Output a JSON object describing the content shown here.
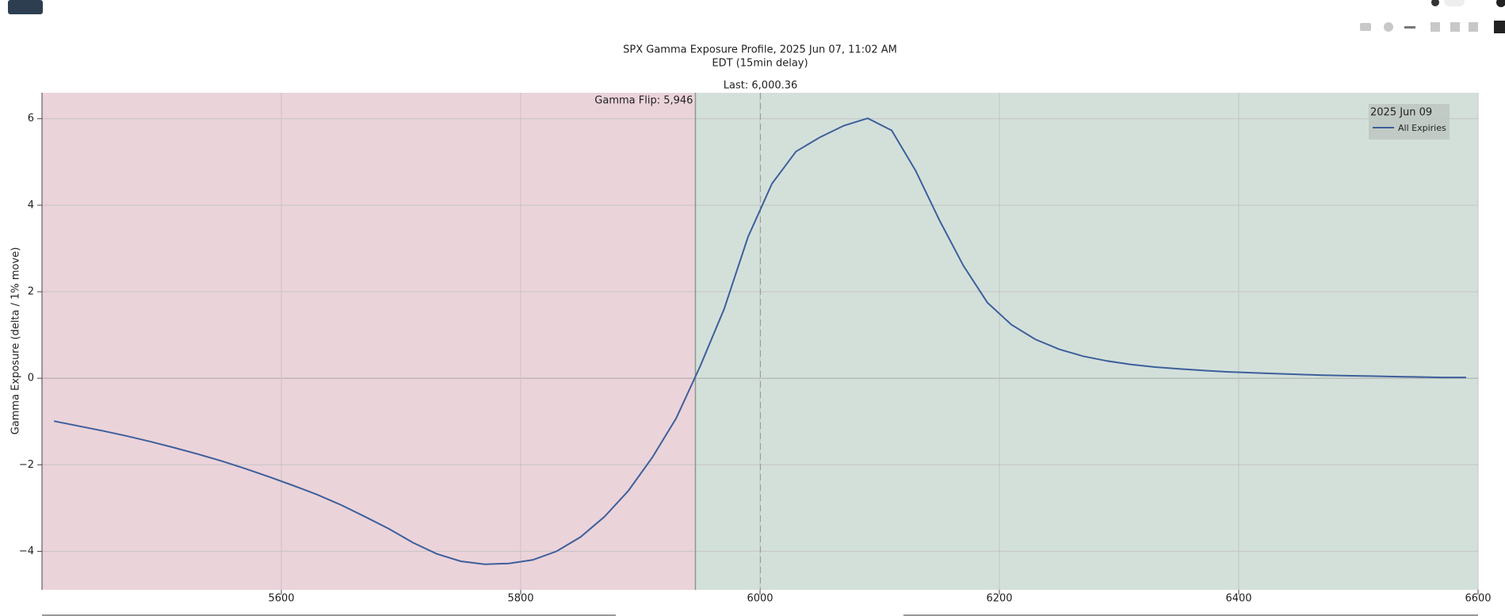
{
  "chart_data": {
    "type": "line",
    "title": [
      "SPX Gamma Exposure Profile, 2025 Jun 07, 11:02 AM",
      "EDT (15min delay)"
    ],
    "y_label": "Gamma Exposure (delta / 1% move)",
    "legend_title": "2025 Jun 09",
    "legend_position": "top-right",
    "x": [
      5410,
      5430,
      5450,
      5470,
      5490,
      5510,
      5530,
      5550,
      5570,
      5590,
      5610,
      5630,
      5650,
      5670,
      5690,
      5710,
      5730,
      5750,
      5770,
      5790,
      5810,
      5830,
      5850,
      5870,
      5890,
      5910,
      5930,
      5950,
      5970,
      5990,
      6010,
      6030,
      6050,
      6070,
      6090,
      6110,
      6130,
      6150,
      6170,
      6190,
      6210,
      6230,
      6250,
      6270,
      6290,
      6310,
      6330,
      6350,
      6370,
      6390,
      6410,
      6430,
      6450,
      6470,
      6490,
      6510,
      6530,
      6550,
      6570,
      6590
    ],
    "series": [
      {
        "name": "All Expiries",
        "color": "#3d5f9b",
        "values": [
          -0.99,
          -1.1,
          -1.21,
          -1.33,
          -1.46,
          -1.6,
          -1.75,
          -1.91,
          -2.09,
          -2.28,
          -2.48,
          -2.69,
          -2.93,
          -3.2,
          -3.48,
          -3.8,
          -4.06,
          -4.23,
          -4.3,
          -4.28,
          -4.2,
          -4.0,
          -3.67,
          -3.2,
          -2.6,
          -1.83,
          -0.92,
          0.28,
          1.6,
          3.27,
          4.5,
          5.24,
          5.57,
          5.84,
          6.01,
          5.73,
          4.8,
          3.65,
          2.6,
          1.75,
          1.24,
          0.9,
          0.67,
          0.51,
          0.4,
          0.32,
          0.26,
          0.22,
          0.18,
          0.15,
          0.13,
          0.11,
          0.09,
          0.07,
          0.06,
          0.05,
          0.04,
          0.03,
          0.02,
          0.02
        ]
      }
    ],
    "gamma_flip": {
      "value": 5946,
      "label": "Gamma Flip: 5,946"
    },
    "last": {
      "value": 6000.36,
      "label": "Last: 6,000.36"
    },
    "negative_color": "#ebd3da",
    "positive_color": "#d3e0da",
    "xlim": [
      5400,
      6600
    ],
    "xticks": [
      5600,
      5800,
      6000,
      6200,
      6400,
      6600
    ],
    "ylim": [
      -4.89,
      6.6
    ],
    "yticks": [
      {
        "value": -4,
        "label": "−4"
      },
      {
        "value": -2,
        "label": "−2"
      },
      0,
      2,
      4,
      6
    ],
    "grid": true
  }
}
